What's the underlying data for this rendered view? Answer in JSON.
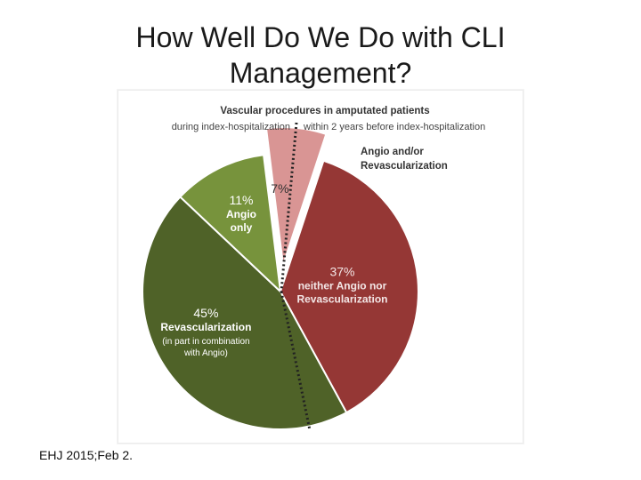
{
  "slide": {
    "title_line1": "How Well Do We Do with CLI",
    "title_line2": "Management?",
    "citation": "EHJ 2015;Feb 2."
  },
  "chart_data": {
    "type": "pie",
    "title": "Vascular procedures in amputated patients",
    "subtitle_left": "during index-hospitalization",
    "subtitle_right": "within 2 years before index-hospitalization",
    "slices": [
      {
        "value": 7,
        "value_label": "7%",
        "label_lines": [],
        "side": "right",
        "exploded": true,
        "color": "#d99594"
      },
      {
        "value": 37,
        "value_label": "37%",
        "label_lines": [
          "neither Angio nor",
          "Revascularization"
        ],
        "side": "right",
        "exploded": false,
        "color": "#953735"
      },
      {
        "value": 45,
        "value_label": "45%",
        "label_lines": [
          "Revascularization"
        ],
        "note_lines": [
          "(in part in combination",
          "with Angio)"
        ],
        "side": "left",
        "exploded": false,
        "color": "#4f6228"
      },
      {
        "value": 11,
        "value_label": "11%",
        "label_lines": [
          "Angio",
          "only"
        ],
        "side": "left",
        "exploded": false,
        "color": "#77933c"
      }
    ],
    "callout": [
      "Angio and/or",
      "Revascularization"
    ]
  }
}
